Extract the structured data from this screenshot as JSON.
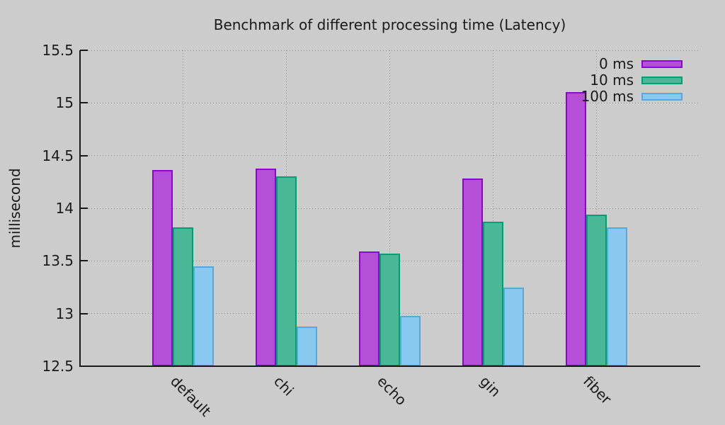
{
  "chart_data": {
    "type": "bar",
    "title": "Benchmark of different processing time (Latency)",
    "xlabel": "",
    "ylabel": "millisecond",
    "categories": [
      "default",
      "chi",
      "echo",
      "gin",
      "fiber"
    ],
    "series": [
      {
        "name": "0 ms",
        "fill": "#b44fd8",
        "border": "#9400d3",
        "values": [
          14.36,
          14.38,
          13.59,
          14.28,
          15.1
        ]
      },
      {
        "name": "10 ms",
        "fill": "#4ab897",
        "border": "#009e73",
        "values": [
          13.82,
          14.3,
          13.57,
          13.87,
          13.94
        ]
      },
      {
        "name": "100 ms",
        "fill": "#89c9f0",
        "border": "#55a9e0",
        "values": [
          13.45,
          12.88,
          12.98,
          13.25,
          13.82
        ]
      }
    ],
    "ylim": [
      12.5,
      15.5
    ],
    "ytick_step": 0.5,
    "ytick_labels": [
      "12.5",
      "13",
      "13.5",
      "14",
      "14.5",
      "15",
      "15.5"
    ],
    "grid": "dotted",
    "legend_position": "top-right",
    "colors": {
      "background": "#cccccc",
      "axis": "#1a1a1a",
      "gridline": "#8f8f8f"
    }
  }
}
